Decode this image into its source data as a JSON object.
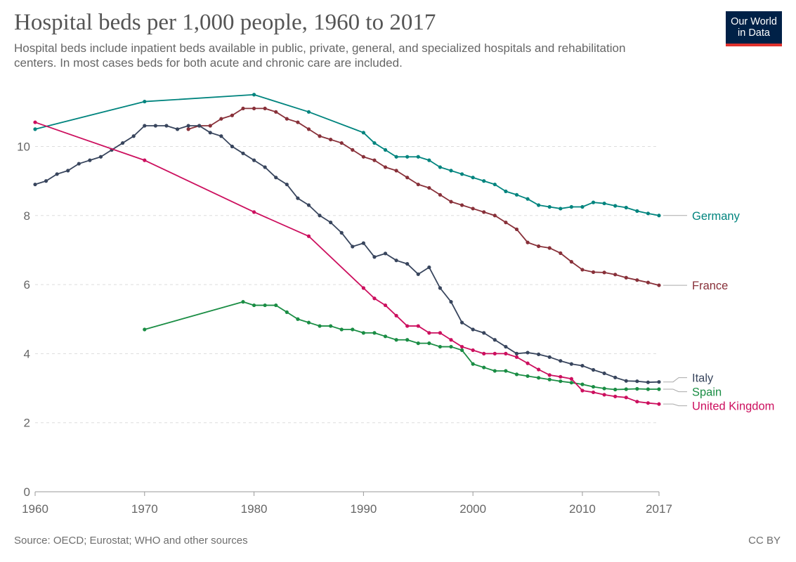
{
  "header": {
    "title": "Hospital beds per 1,000 people, 1960 to 2017",
    "subtitle": "Hospital beds include inpatient beds available in public, private, general, and specialized hospitals and rehabilitation centers. In most cases beds for both acute and chronic care are included."
  },
  "logo": {
    "line1": "Our World",
    "line2": "in Data",
    "bg_color": "#002147",
    "accent_color": "#e0312c"
  },
  "footer": {
    "source": "Source: OECD; Eurostat; WHO and other sources",
    "license": "CC BY"
  },
  "chart_data": {
    "type": "line",
    "title": "Hospital beds per 1,000 people, 1960 to 2017",
    "xlabel": "",
    "ylabel": "",
    "xlim": [
      1960,
      2017
    ],
    "ylim": [
      0,
      11.8
    ],
    "x_ticks": [
      1960,
      1970,
      1980,
      1990,
      2000,
      2010,
      2017
    ],
    "y_ticks": [
      0,
      2,
      4,
      6,
      8,
      10
    ],
    "grid": "horizontal dashed",
    "legend": "right, labels at line ends",
    "series": [
      {
        "name": "Germany",
        "color": "#00847e",
        "points": [
          [
            1960,
            10.5
          ],
          [
            1970,
            11.3
          ],
          [
            1980,
            11.5
          ],
          [
            1985,
            11.0
          ],
          [
            1990,
            10.4
          ],
          [
            1991,
            10.1
          ],
          [
            1992,
            9.9
          ],
          [
            1993,
            9.7
          ],
          [
            1994,
            9.7
          ],
          [
            1995,
            9.7
          ],
          [
            1996,
            9.6
          ],
          [
            1997,
            9.4
          ],
          [
            1998,
            9.3
          ],
          [
            1999,
            9.2
          ],
          [
            2000,
            9.1
          ],
          [
            2001,
            9.0
          ],
          [
            2002,
            8.9
          ],
          [
            2003,
            8.7
          ],
          [
            2004,
            8.6
          ],
          [
            2005,
            8.48
          ],
          [
            2006,
            8.3
          ],
          [
            2007,
            8.25
          ],
          [
            2008,
            8.2
          ],
          [
            2009,
            8.25
          ],
          [
            2010,
            8.25
          ],
          [
            2011,
            8.38
          ],
          [
            2012,
            8.35
          ],
          [
            2013,
            8.28
          ],
          [
            2014,
            8.23
          ],
          [
            2015,
            8.13
          ],
          [
            2016,
            8.06
          ],
          [
            2017,
            8.0
          ]
        ]
      },
      {
        "name": "France",
        "color": "#883039",
        "points": [
          [
            1974,
            10.5
          ],
          [
            1975,
            10.6
          ],
          [
            1976,
            10.6
          ],
          [
            1977,
            10.8
          ],
          [
            1978,
            10.9
          ],
          [
            1979,
            11.1
          ],
          [
            1980,
            11.1
          ],
          [
            1981,
            11.1
          ],
          [
            1982,
            11.0
          ],
          [
            1983,
            10.8
          ],
          [
            1984,
            10.7
          ],
          [
            1985,
            10.5
          ],
          [
            1986,
            10.3
          ],
          [
            1987,
            10.2
          ],
          [
            1988,
            10.1
          ],
          [
            1989,
            9.9
          ],
          [
            1990,
            9.7
          ],
          [
            1991,
            9.6
          ],
          [
            1992,
            9.4
          ],
          [
            1993,
            9.3
          ],
          [
            1994,
            9.1
          ],
          [
            1995,
            8.9
          ],
          [
            1996,
            8.8
          ],
          [
            1997,
            8.6
          ],
          [
            1998,
            8.4
          ],
          [
            1999,
            8.3
          ],
          [
            2000,
            8.2
          ],
          [
            2001,
            8.1
          ],
          [
            2002,
            8.0
          ],
          [
            2003,
            7.8
          ],
          [
            2004,
            7.6
          ],
          [
            2005,
            7.22
          ],
          [
            2006,
            7.11
          ],
          [
            2007,
            7.06
          ],
          [
            2008,
            6.91
          ],
          [
            2009,
            6.66
          ],
          [
            2010,
            6.43
          ],
          [
            2011,
            6.36
          ],
          [
            2012,
            6.35
          ],
          [
            2013,
            6.29
          ],
          [
            2014,
            6.2
          ],
          [
            2015,
            6.13
          ],
          [
            2016,
            6.06
          ],
          [
            2017,
            5.98
          ]
        ]
      },
      {
        "name": "Italy",
        "color": "#38455d",
        "points": [
          [
            1960,
            8.9
          ],
          [
            1961,
            9.0
          ],
          [
            1962,
            9.2
          ],
          [
            1963,
            9.3
          ],
          [
            1964,
            9.5
          ],
          [
            1965,
            9.6
          ],
          [
            1966,
            9.7
          ],
          [
            1967,
            9.9
          ],
          [
            1968,
            10.1
          ],
          [
            1969,
            10.3
          ],
          [
            1970,
            10.6
          ],
          [
            1971,
            10.6
          ],
          [
            1972,
            10.6
          ],
          [
            1973,
            10.5
          ],
          [
            1974,
            10.6
          ],
          [
            1975,
            10.6
          ],
          [
            1976,
            10.4
          ],
          [
            1977,
            10.3
          ],
          [
            1978,
            10.0
          ],
          [
            1979,
            9.8
          ],
          [
            1980,
            9.6
          ],
          [
            1981,
            9.4
          ],
          [
            1982,
            9.1
          ],
          [
            1983,
            8.9
          ],
          [
            1984,
            8.5
          ],
          [
            1985,
            8.3
          ],
          [
            1986,
            8.0
          ],
          [
            1987,
            7.8
          ],
          [
            1988,
            7.5
          ],
          [
            1989,
            7.1
          ],
          [
            1990,
            7.2
          ],
          [
            1991,
            6.8
          ],
          [
            1992,
            6.9
          ],
          [
            1993,
            6.7
          ],
          [
            1994,
            6.6
          ],
          [
            1995,
            6.3
          ],
          [
            1996,
            6.5
          ],
          [
            1997,
            5.9
          ],
          [
            1998,
            5.5
          ],
          [
            1999,
            4.9
          ],
          [
            2000,
            4.7
          ],
          [
            2001,
            4.6
          ],
          [
            2002,
            4.4
          ],
          [
            2003,
            4.2
          ],
          [
            2004,
            4.0
          ],
          [
            2005,
            4.03
          ],
          [
            2006,
            3.98
          ],
          [
            2007,
            3.9
          ],
          [
            2008,
            3.79
          ],
          [
            2009,
            3.7
          ],
          [
            2010,
            3.65
          ],
          [
            2011,
            3.53
          ],
          [
            2012,
            3.43
          ],
          [
            2013,
            3.31
          ],
          [
            2014,
            3.21
          ],
          [
            2015,
            3.2
          ],
          [
            2016,
            3.17
          ],
          [
            2017,
            3.18
          ]
        ]
      },
      {
        "name": "Spain",
        "color": "#1a8d44",
        "points": [
          [
            1970,
            4.7
          ],
          [
            1979,
            5.5
          ],
          [
            1980,
            5.4
          ],
          [
            1981,
            5.4
          ],
          [
            1982,
            5.4
          ],
          [
            1983,
            5.2
          ],
          [
            1984,
            5.0
          ],
          [
            1985,
            4.9
          ],
          [
            1986,
            4.8
          ],
          [
            1987,
            4.8
          ],
          [
            1988,
            4.7
          ],
          [
            1989,
            4.7
          ],
          [
            1990,
            4.6
          ],
          [
            1991,
            4.6
          ],
          [
            1992,
            4.5
          ],
          [
            1993,
            4.4
          ],
          [
            1994,
            4.4
          ],
          [
            1995,
            4.3
          ],
          [
            1996,
            4.3
          ],
          [
            1997,
            4.2
          ],
          [
            1998,
            4.2
          ],
          [
            1999,
            4.1
          ],
          [
            2000,
            3.7
          ],
          [
            2001,
            3.6
          ],
          [
            2002,
            3.5
          ],
          [
            2003,
            3.5
          ],
          [
            2004,
            3.4
          ],
          [
            2005,
            3.35
          ],
          [
            2006,
            3.3
          ],
          [
            2007,
            3.25
          ],
          [
            2008,
            3.2
          ],
          [
            2009,
            3.16
          ],
          [
            2010,
            3.11
          ],
          [
            2011,
            3.04
          ],
          [
            2012,
            2.99
          ],
          [
            2013,
            2.96
          ],
          [
            2014,
            2.97
          ],
          [
            2015,
            2.98
          ],
          [
            2016,
            2.97
          ],
          [
            2017,
            2.97
          ]
        ]
      },
      {
        "name": "United Kingdom",
        "color": "#cc0f5e",
        "points": [
          [
            1960,
            10.7
          ],
          [
            1970,
            9.6
          ],
          [
            1980,
            8.1
          ],
          [
            1985,
            7.4
          ],
          [
            1990,
            5.9
          ],
          [
            1991,
            5.6
          ],
          [
            1992,
            5.4
          ],
          [
            1993,
            5.1
          ],
          [
            1994,
            4.8
          ],
          [
            1995,
            4.8
          ],
          [
            1996,
            4.6
          ],
          [
            1997,
            4.6
          ],
          [
            1998,
            4.4
          ],
          [
            1999,
            4.2
          ],
          [
            2000,
            4.1
          ],
          [
            2001,
            4.0
          ],
          [
            2002,
            4.0
          ],
          [
            2003,
            4.0
          ],
          [
            2004,
            3.9
          ],
          [
            2005,
            3.72
          ],
          [
            2006,
            3.54
          ],
          [
            2007,
            3.38
          ],
          [
            2008,
            3.33
          ],
          [
            2009,
            3.27
          ],
          [
            2010,
            2.93
          ],
          [
            2011,
            2.88
          ],
          [
            2012,
            2.81
          ],
          [
            2013,
            2.76
          ],
          [
            2014,
            2.73
          ],
          [
            2015,
            2.61
          ],
          [
            2016,
            2.57
          ],
          [
            2017,
            2.54
          ]
        ]
      }
    ]
  }
}
